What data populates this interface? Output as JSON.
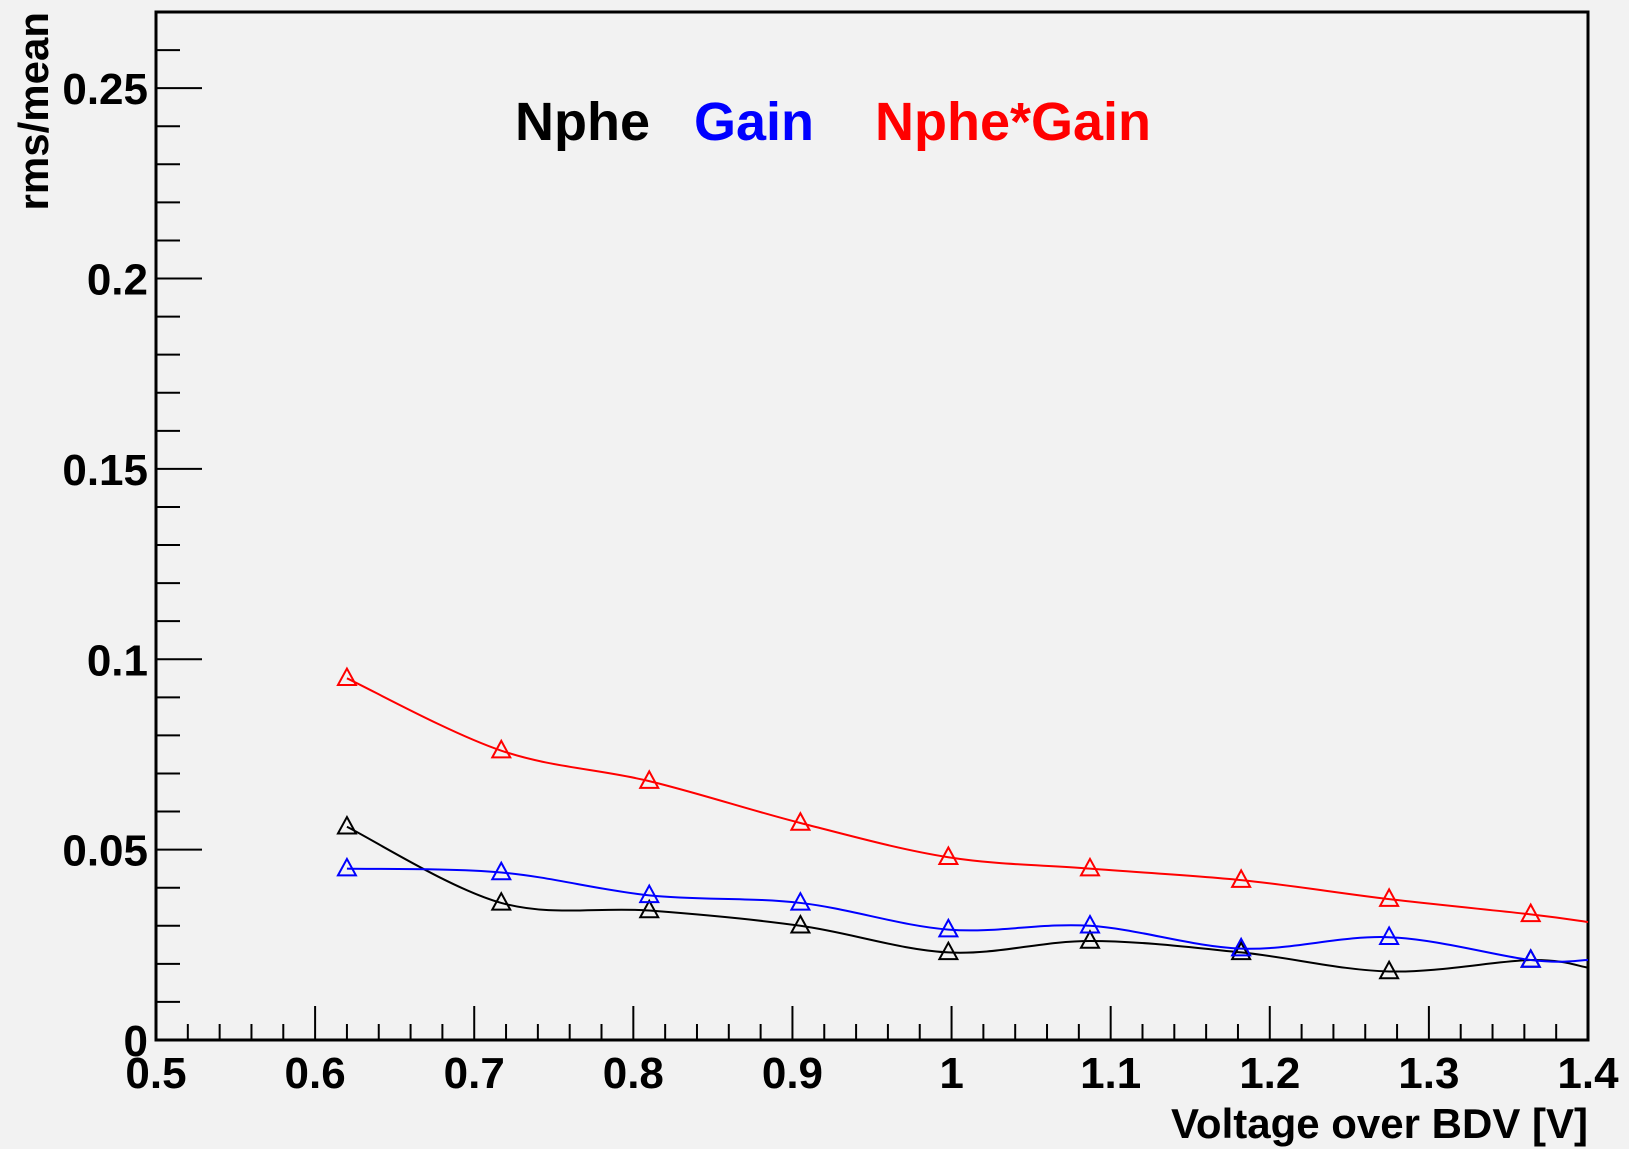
{
  "chart_data": {
    "type": "line",
    "xlabel": "Voltage over BDV [V]",
    "ylabel": "rms/mean",
    "xlim": [
      0.5,
      1.4
    ],
    "ylim": [
      0,
      0.27
    ],
    "x_ticks": [
      {
        "value": 0.5,
        "label": "0.5"
      },
      {
        "value": 0.6,
        "label": "0.6"
      },
      {
        "value": 0.7,
        "label": "0.7"
      },
      {
        "value": 0.8,
        "label": "0.8"
      },
      {
        "value": 0.9,
        "label": "0.9"
      },
      {
        "value": 1.0,
        "label": "1"
      },
      {
        "value": 1.1,
        "label": "1.1"
      },
      {
        "value": 1.2,
        "label": "1.2"
      },
      {
        "value": 1.3,
        "label": "1.3"
      },
      {
        "value": 1.4,
        "label": "1.4"
      }
    ],
    "y_ticks": [
      {
        "value": 0,
        "label": "0"
      },
      {
        "value": 0.05,
        "label": "0.05"
      },
      {
        "value": 0.1,
        "label": "0.1"
      },
      {
        "value": 0.15,
        "label": "0.15"
      },
      {
        "value": 0.2,
        "label": "0.2"
      },
      {
        "value": 0.25,
        "label": "0.25"
      }
    ],
    "grid": false,
    "legend_placement": "top-center",
    "x": [
      0.62,
      0.717,
      0.81,
      0.905,
      0.998,
      1.087,
      1.182,
      1.275,
      1.364
    ],
    "series": [
      {
        "name": "Nphe",
        "color": "#000000",
        "marker": "open-triangle",
        "values": [
          0.056,
          0.036,
          0.034,
          0.03,
          0.023,
          0.026,
          0.023,
          0.018,
          0.021
        ],
        "extend_to_edge": 0.019
      },
      {
        "name": "Gain",
        "color": "#0000ff",
        "marker": "open-triangle",
        "values": [
          0.045,
          0.044,
          0.038,
          0.036,
          0.029,
          0.03,
          0.024,
          0.027,
          0.021
        ],
        "extend_to_edge": 0.021
      },
      {
        "name": "Nphe*Gain",
        "color": "#ff0000",
        "marker": "open-triangle",
        "values": [
          0.095,
          0.076,
          0.068,
          0.057,
          0.048,
          0.045,
          0.042,
          0.037,
          0.033
        ],
        "extend_to_edge": 0.031
      }
    ]
  }
}
